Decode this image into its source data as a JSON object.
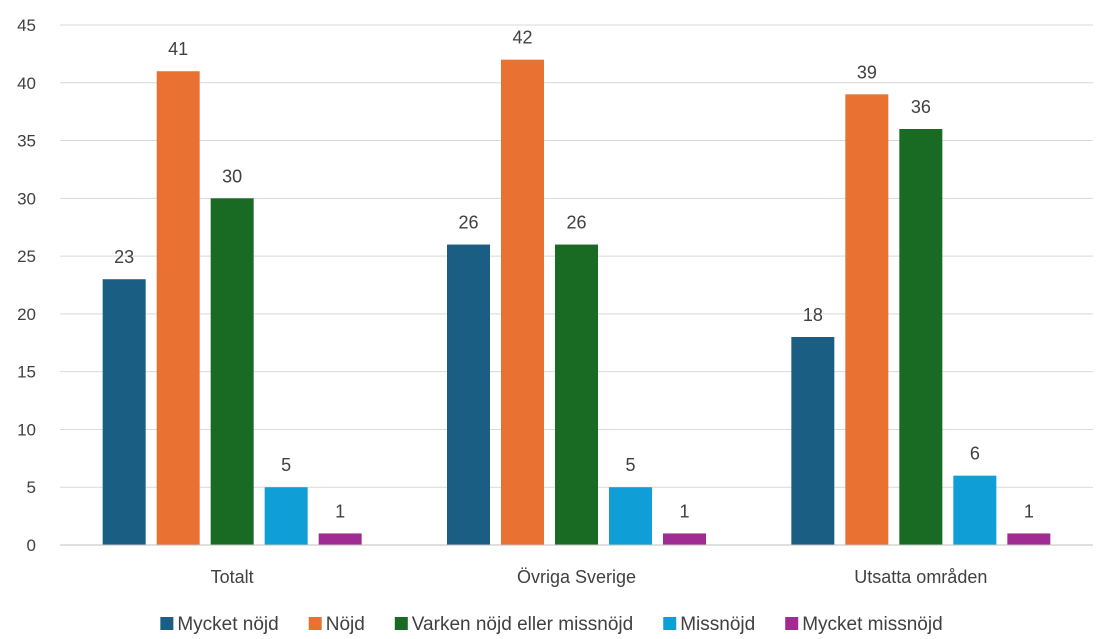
{
  "chart_data": {
    "type": "bar",
    "categories": [
      "Totalt",
      "Övriga Sverige",
      "Utsatta områden"
    ],
    "series": [
      {
        "name": "Mycket nöjd",
        "color": "#1a5e83",
        "values": [
          23,
          26,
          18
        ]
      },
      {
        "name": "Nöjd",
        "color": "#e97132",
        "values": [
          41,
          42,
          39
        ]
      },
      {
        "name": "Varken nöjd eller missnöjd",
        "color": "#196b24",
        "values": [
          30,
          26,
          36
        ]
      },
      {
        "name": "Missnöjd",
        "color": "#0f9ed5",
        "values": [
          5,
          5,
          6
        ]
      },
      {
        "name": "Mycket missnöjd",
        "color": "#a02b93",
        "values": [
          1,
          1,
          1
        ]
      }
    ],
    "ylim": [
      0,
      45
    ],
    "yticks": [
      0,
      5,
      10,
      15,
      20,
      25,
      30,
      35,
      40,
      45
    ],
    "grid": true,
    "legend_position": "bottom",
    "data_labels": true
  }
}
